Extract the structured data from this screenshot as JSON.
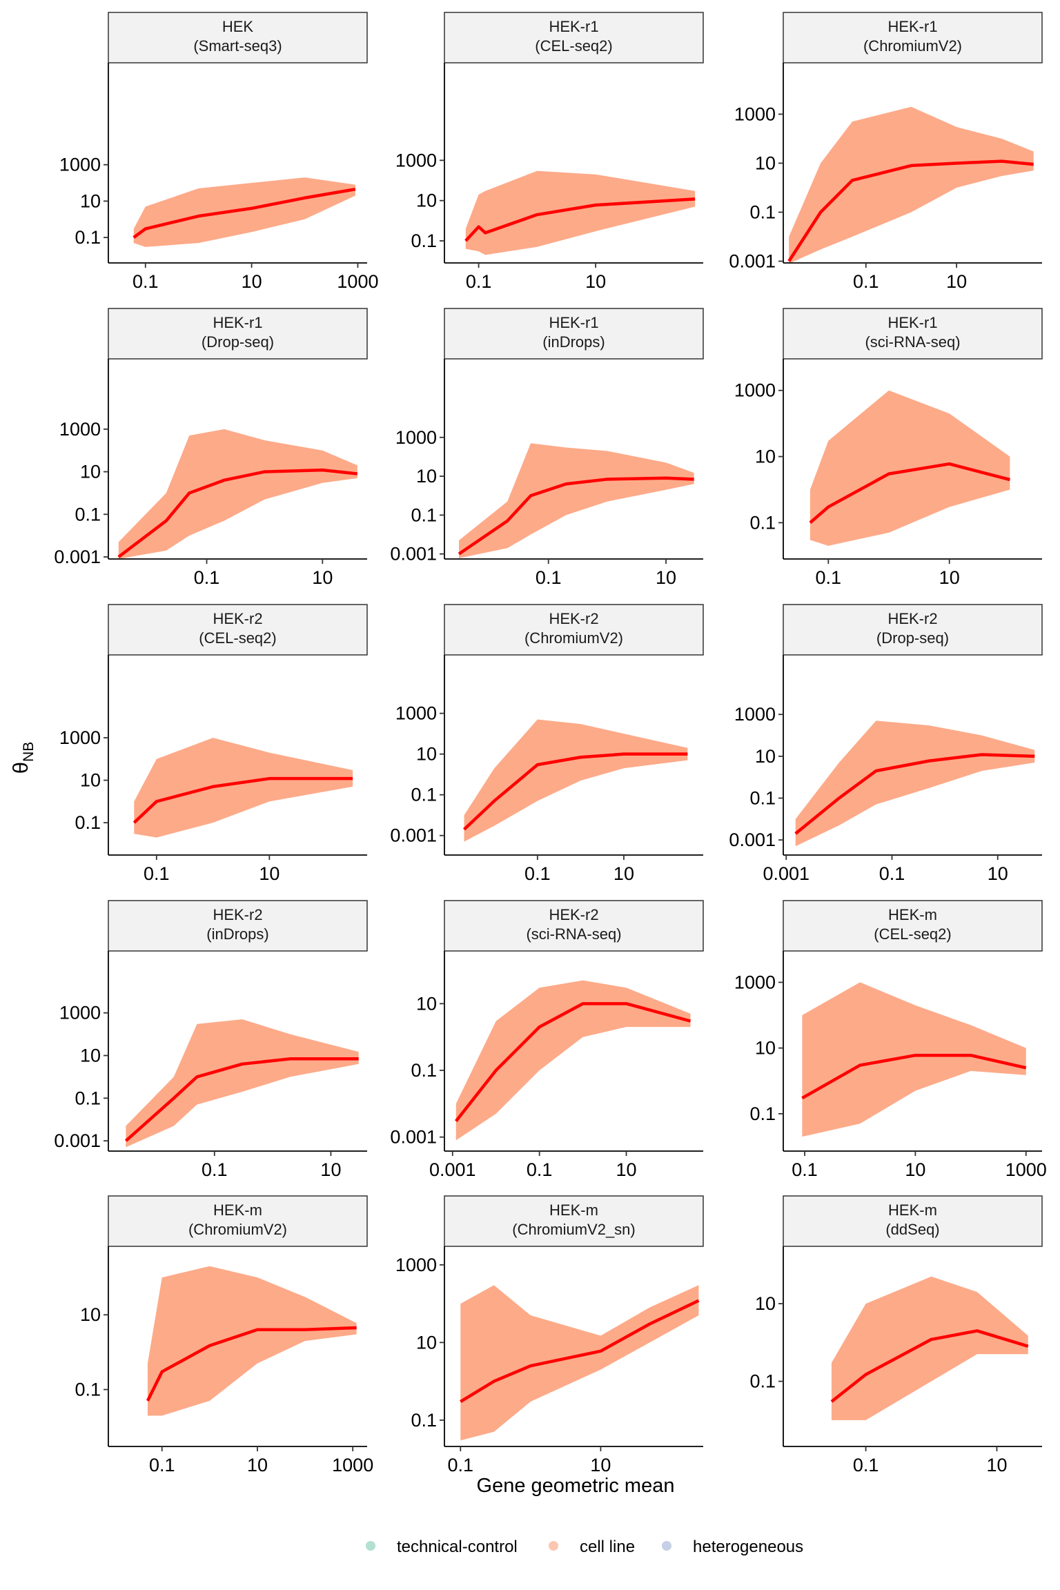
{
  "chart_data": [
    {
      "type": "scatter",
      "title": "HEK",
      "subtitle": "(Smart-seq3)",
      "log_x": true,
      "log_y": true,
      "xlim": [
        0.02,
        1500
      ],
      "xticks": [
        0.1,
        10,
        1000
      ],
      "ylim": [
        0.004,
        400000000
      ],
      "yticks": [
        0.1,
        10,
        1000
      ],
      "cloud": {
        "color": "#fc8d62",
        "x": [
          0.06,
          0.1,
          1,
          10,
          100,
          900
        ],
        "low": [
          0.05,
          0.03,
          0.05,
          0.2,
          1,
          20
        ],
        "high": [
          0.3,
          5,
          50,
          100,
          200,
          80
        ]
      },
      "trend": {
        "color": "#ff0000",
        "x": [
          0.06,
          0.1,
          1,
          10,
          100,
          900
        ],
        "values": [
          0.1,
          0.3,
          1.5,
          4,
          15,
          45
        ]
      }
    },
    {
      "type": "scatter",
      "title": "HEK-r1",
      "subtitle": "(CEL-seq2)",
      "log_x": true,
      "log_y": true,
      "xlim": [
        0.026,
        690
      ],
      "xticks": [
        0.1,
        10
      ],
      "ylim": [
        0.008,
        70000000
      ],
      "yticks": [
        0.1,
        10,
        1000
      ],
      "cloud": {
        "color": "#fc8d62",
        "x": [
          0.06,
          0.1,
          0.13,
          1,
          10,
          500
        ],
        "low": [
          0.04,
          0.03,
          0.02,
          0.05,
          0.3,
          5
        ],
        "high": [
          0.4,
          20,
          30,
          300,
          200,
          30
        ]
      },
      "trend": {
        "color": "#ff0000",
        "x": [
          0.06,
          0.1,
          0.13,
          1,
          10,
          500
        ],
        "values": [
          0.1,
          0.5,
          0.25,
          2,
          6,
          12
        ]
      }
    },
    {
      "type": "scatter",
      "title": "HEK-r1",
      "subtitle": "(ChromiumV2)",
      "log_x": true,
      "log_y": true,
      "xlim": [
        0.0015,
        770
      ],
      "xticks": [
        0.1,
        10
      ],
      "ylim": [
        0.00085,
        125000
      ],
      "yticks": [
        0.001,
        0.1,
        10,
        1000
      ],
      "cloud": {
        "color": "#fc8d62",
        "x": [
          0.002,
          0.01,
          0.05,
          1,
          10,
          100,
          500
        ],
        "low": [
          0.0008,
          0.003,
          0.01,
          0.1,
          1,
          3,
          5
        ],
        "high": [
          0.01,
          10,
          500,
          2000,
          300,
          100,
          30
        ]
      },
      "trend": {
        "color": "#ff0000",
        "x": [
          0.002,
          0.01,
          0.05,
          1,
          10,
          100,
          500
        ],
        "values": [
          0.001,
          0.1,
          2,
          8,
          10,
          12,
          9
        ]
      }
    },
    {
      "type": "scatter",
      "title": "HEK-r1",
      "subtitle": "(Drop-seq)",
      "log_x": true,
      "log_y": true,
      "xlim": [
        0.002,
        59
      ],
      "xticks": [
        0.1,
        10
      ],
      "ylim": [
        0.0008,
        2000000
      ],
      "yticks": [
        0.001,
        0.1,
        10,
        1000
      ],
      "cloud": {
        "color": "#fc8d62",
        "x": [
          0.003,
          0.02,
          0.05,
          0.2,
          1,
          10,
          40
        ],
        "low": [
          0.0008,
          0.002,
          0.01,
          0.05,
          0.5,
          3,
          5
        ],
        "high": [
          0.005,
          1,
          500,
          1000,
          300,
          100,
          20
        ]
      },
      "trend": {
        "color": "#ff0000",
        "x": [
          0.003,
          0.02,
          0.05,
          0.2,
          1,
          10,
          40
        ],
        "values": [
          0.001,
          0.05,
          1,
          4,
          10,
          12,
          8
        ]
      }
    },
    {
      "type": "scatter",
      "title": "HEK-r1",
      "subtitle": "(inDrops)",
      "log_x": true,
      "log_y": true,
      "xlim": [
        0.0017,
        43
      ],
      "xticks": [
        0.1,
        10
      ],
      "ylim": [
        0.00055,
        11000000
      ],
      "yticks": [
        0.001,
        0.1,
        10,
        1000
      ],
      "cloud": {
        "color": "#fc8d62",
        "x": [
          0.003,
          0.02,
          0.05,
          0.2,
          1,
          10,
          30
        ],
        "low": [
          0.0006,
          0.002,
          0.01,
          0.1,
          0.5,
          2,
          4
        ],
        "high": [
          0.005,
          0.5,
          500,
          300,
          200,
          50,
          15
        ]
      },
      "trend": {
        "color": "#ff0000",
        "x": [
          0.003,
          0.02,
          0.05,
          0.2,
          1,
          10,
          30
        ],
        "values": [
          0.001,
          0.05,
          1,
          4,
          7,
          8,
          7
        ]
      }
    },
    {
      "type": "scatter",
      "title": "HEK-r1",
      "subtitle": "(sci-RNA-seq)",
      "log_x": true,
      "log_y": true,
      "xlim": [
        0.018,
        340
      ],
      "xticks": [
        0.1,
        10
      ],
      "ylim": [
        0.008,
        9000
      ],
      "yticks": [
        0.1,
        10,
        1000
      ],
      "cloud": {
        "color": "#fc8d62",
        "x": [
          0.05,
          0.1,
          1,
          10,
          100
        ],
        "low": [
          0.03,
          0.02,
          0.05,
          0.3,
          1
        ],
        "high": [
          1,
          30,
          1000,
          200,
          10
        ]
      },
      "trend": {
        "color": "#ff0000",
        "x": [
          0.05,
          0.1,
          1,
          10,
          100
        ],
        "values": [
          0.1,
          0.3,
          3,
          6,
          2
        ]
      }
    },
    {
      "type": "scatter",
      "title": "HEK-r2",
      "subtitle": "(CEL-seq2)",
      "log_x": true,
      "log_y": true,
      "xlim": [
        0.014,
        540
      ],
      "xticks": [
        0.1,
        10
      ],
      "ylim": [
        0.003,
        8000000
      ],
      "yticks": [
        0.1,
        10,
        1000
      ],
      "cloud": {
        "color": "#fc8d62",
        "x": [
          0.04,
          0.1,
          1,
          10,
          300
        ],
        "low": [
          0.03,
          0.02,
          0.1,
          1,
          5
        ],
        "high": [
          1,
          100,
          1000,
          200,
          30
        ]
      },
      "trend": {
        "color": "#ff0000",
        "x": [
          0.04,
          0.1,
          1,
          10,
          300
        ],
        "values": [
          0.1,
          1,
          5,
          12,
          12
        ]
      }
    },
    {
      "type": "scatter",
      "title": "HEK-r2",
      "subtitle": "(ChromiumV2)",
      "log_x": true,
      "log_y": true,
      "xlim": [
        0.0007,
        690
      ],
      "xticks": [
        0.1,
        10
      ],
      "ylim": [
        0.00011,
        740000
      ],
      "yticks": [
        0.001,
        0.1,
        10,
        1000
      ],
      "cloud": {
        "color": "#fc8d62",
        "x": [
          0.002,
          0.01,
          0.1,
          1,
          10,
          300
        ],
        "low": [
          0.0005,
          0.003,
          0.05,
          0.5,
          2,
          5
        ],
        "high": [
          0.01,
          2,
          500,
          300,
          100,
          20
        ]
      },
      "trend": {
        "color": "#ff0000",
        "x": [
          0.002,
          0.01,
          0.1,
          1,
          10,
          300
        ],
        "values": [
          0.002,
          0.05,
          3,
          7,
          10,
          10
        ]
      }
    },
    {
      "type": "scatter",
      "title": "HEK-r2",
      "subtitle": "(Drop-seq)",
      "log_x": true,
      "log_y": true,
      "xlim": [
        0.00088,
        69
      ],
      "xticks": [
        0.001,
        0.1,
        10
      ],
      "ylim": [
        0.00019,
        700000
      ],
      "yticks": [
        0.001,
        0.1,
        10,
        1000
      ],
      "cloud": {
        "color": "#fc8d62",
        "x": [
          0.0015,
          0.01,
          0.05,
          0.5,
          5,
          50
        ],
        "low": [
          0.0005,
          0.005,
          0.05,
          0.3,
          2,
          5
        ],
        "high": [
          0.01,
          5,
          500,
          300,
          100,
          20
        ]
      },
      "trend": {
        "color": "#ff0000",
        "x": [
          0.0015,
          0.01,
          0.05,
          0.5,
          5,
          50
        ],
        "values": [
          0.002,
          0.1,
          2,
          6,
          12,
          10
        ]
      }
    },
    {
      "type": "scatter",
      "title": "HEK-r2",
      "subtitle": "(inDrops)",
      "log_x": true,
      "log_y": true,
      "xlim": [
        0.0015,
        42
      ],
      "xticks": [
        0.1,
        10
      ],
      "ylim": [
        0.00033,
        800000
      ],
      "yticks": [
        0.001,
        0.1,
        10,
        1000
      ],
      "cloud": {
        "color": "#fc8d62",
        "x": [
          0.003,
          0.02,
          0.05,
          0.3,
          2,
          30
        ],
        "low": [
          0.0005,
          0.005,
          0.05,
          0.2,
          1,
          4
        ],
        "high": [
          0.005,
          1,
          300,
          500,
          100,
          15
        ]
      },
      "trend": {
        "color": "#ff0000",
        "x": [
          0.003,
          0.02,
          0.05,
          0.3,
          2,
          30
        ],
        "values": [
          0.001,
          0.1,
          1,
          4,
          7,
          7
        ]
      }
    },
    {
      "type": "scatter",
      "title": "HEK-r2",
      "subtitle": "(sci-RNA-seq)",
      "log_x": true,
      "log_y": true,
      "xlim": [
        0.00065,
        590
      ],
      "xticks": [
        0.001,
        0.1,
        10
      ],
      "ylim": [
        0.00038,
        380
      ],
      "yticks": [
        0.001,
        0.1,
        10
      ],
      "cloud": {
        "color": "#fc8d62",
        "x": [
          0.0012,
          0.01,
          0.1,
          1,
          10,
          300
        ],
        "low": [
          0.0008,
          0.005,
          0.1,
          1,
          2,
          2
        ],
        "high": [
          0.01,
          3,
          30,
          50,
          30,
          5
        ]
      },
      "trend": {
        "color": "#ff0000",
        "x": [
          0.0012,
          0.01,
          0.1,
          1,
          10,
          300
        ],
        "values": [
          0.003,
          0.1,
          2,
          10,
          10,
          3
        ]
      }
    },
    {
      "type": "scatter",
      "title": "HEK-m",
      "subtitle": "(CEL-seq2)",
      "log_x": true,
      "log_y": true,
      "xlim": [
        0.041,
        1950
      ],
      "xticks": [
        0.1,
        10,
        1000
      ],
      "ylim": [
        0.0073,
        9000
      ],
      "yticks": [
        0.1,
        10,
        1000
      ],
      "cloud": {
        "color": "#fc8d62",
        "x": [
          0.09,
          1,
          10,
          100,
          1000
        ],
        "low": [
          0.02,
          0.05,
          0.5,
          2,
          1.5
        ],
        "high": [
          100,
          1000,
          200,
          50,
          10
        ]
      },
      "trend": {
        "color": "#ff0000",
        "x": [
          0.09,
          1,
          10,
          100,
          1000
        ],
        "values": [
          0.3,
          3,
          6,
          6,
          2.5
        ]
      }
    },
    {
      "type": "scatter",
      "title": "HEK-m",
      "subtitle": "(ChromiumV2)",
      "log_x": true,
      "log_y": true,
      "xlim": [
        0.0075,
        2000
      ],
      "xticks": [
        0.1,
        10,
        1000
      ],
      "ylim": [
        0.003,
        680
      ],
      "yticks": [
        0.1,
        10
      ],
      "cloud": {
        "color": "#fc8d62",
        "x": [
          0.05,
          0.1,
          1,
          10,
          100,
          1200
        ],
        "low": [
          0.02,
          0.02,
          0.05,
          0.5,
          2,
          3
        ],
        "high": [
          0.5,
          100,
          200,
          100,
          30,
          6
        ]
      },
      "trend": {
        "color": "#ff0000",
        "x": [
          0.05,
          0.1,
          1,
          10,
          100,
          1200
        ],
        "values": [
          0.05,
          0.3,
          1.5,
          4,
          4,
          4.5
        ]
      }
    },
    {
      "type": "scatter",
      "title": "HEK-m",
      "subtitle": "(ChromiumV2_sn)",
      "log_x": true,
      "log_y": true,
      "xlim": [
        0.059,
        290
      ],
      "xticks": [
        0.1,
        10
      ],
      "ylim": [
        0.021,
        3000
      ],
      "yticks": [
        0.1,
        10,
        1000
      ],
      "cloud": {
        "color": "#fc8d62",
        "x": [
          0.1,
          0.3,
          1,
          10,
          50,
          250
        ],
        "low": [
          0.03,
          0.05,
          0.3,
          2,
          10,
          50
        ],
        "high": [
          100,
          300,
          50,
          15,
          80,
          300
        ]
      },
      "trend": {
        "color": "#ff0000",
        "x": [
          0.1,
          0.3,
          1,
          10,
          50,
          250
        ],
        "values": [
          0.3,
          1,
          2.5,
          6,
          30,
          120
        ]
      }
    },
    {
      "type": "scatter",
      "title": "HEK-m",
      "subtitle": "(ddSeq)",
      "log_x": true,
      "log_y": true,
      "xlim": [
        0.0055,
        49
      ],
      "xticks": [
        0.1,
        10
      ],
      "ylim": [
        0.0021,
        300
      ],
      "yticks": [
        0.1,
        10
      ],
      "cloud": {
        "color": "#fc8d62",
        "x": [
          0.03,
          0.1,
          1,
          5,
          30
        ],
        "low": [
          0.01,
          0.01,
          0.1,
          0.5,
          0.5
        ],
        "high": [
          0.3,
          10,
          50,
          20,
          1.5
        ]
      },
      "trend": {
        "color": "#ff0000",
        "x": [
          0.03,
          0.1,
          1,
          5,
          30
        ],
        "values": [
          0.03,
          0.15,
          1.2,
          2,
          0.8
        ]
      }
    }
  ],
  "x_label": "Gene geometric mean",
  "y_label": {
    "symbol": "θ",
    "subscript": "NB"
  },
  "legend": [
    {
      "name": "technical-control",
      "color": "#66c2a5"
    },
    {
      "name": "cell line",
      "color": "#fc8d62"
    },
    {
      "name": "heterogeneous",
      "color": "#8da0cb"
    }
  ]
}
